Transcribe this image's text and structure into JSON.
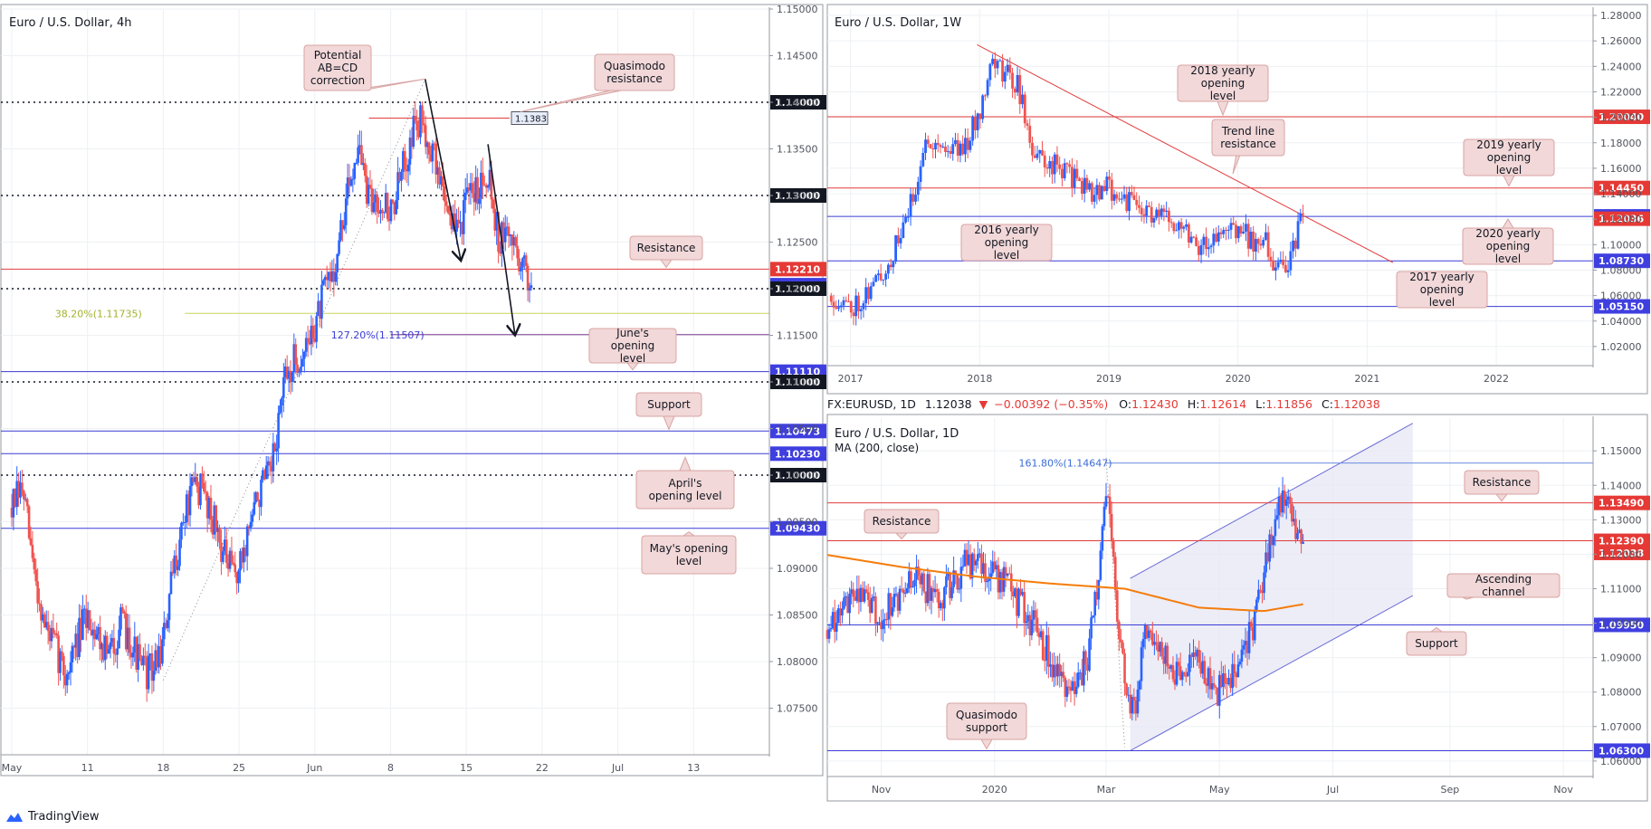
{
  "colors": {
    "up": "#2962ff",
    "down": "#ef5350",
    "red_line": "#e23b3b",
    "blue_line": "#3b3bd6",
    "fib": "#c7d65a",
    "ma": "#f57c0b",
    "callout_bg": "#f2d8d8",
    "callout_border": "#d9a3a3",
    "badge_red": "#e53935",
    "badge_blue": "#3f3fe0",
    "badge_dark": "#131722",
    "channel_fill": "#e7e9f5",
    "grid": "#eef0f3"
  },
  "footer": {
    "brand": "TradingView",
    "icon": "tradingview-cloud-icon"
  },
  "chart_data": [
    {
      "id": "h4",
      "type": "candlestick",
      "title": "Euro / U.S. Dollar, 4h",
      "ylim": [
        1.07,
        1.15
      ],
      "y_ticks": [
        1.075,
        1.08,
        1.085,
        1.09,
        1.095,
        1.1,
        1.105,
        1.11,
        1.115,
        1.12,
        1.125,
        1.13,
        1.135,
        1.14,
        1.145,
        1.15
      ],
      "y_tick_labels": [
        "1.07500",
        "1.08000",
        "1.08500",
        "1.09000",
        "1.09500",
        "1.10000",
        "1.10500",
        "1.11000",
        "1.11500",
        "1.12000",
        "1.12500",
        "1.13000",
        "1.13500",
        "1.14000",
        "1.14500",
        "1.15000"
      ],
      "x_ticks": [
        "May",
        "11",
        "18",
        "25",
        "Jun",
        "8",
        "15",
        "22",
        "Jul",
        "13"
      ],
      "x_tick_pos": [
        0,
        7,
        14,
        21,
        28,
        35,
        42,
        49,
        56,
        63
      ],
      "x_range": [
        -1,
        70
      ],
      "trend": [
        {
          "d": 0,
          "v": 1.0965
        },
        {
          "d": 1,
          "v": 1.0985
        },
        {
          "d": 2,
          "v": 1.09
        },
        {
          "d": 3,
          "v": 1.084
        },
        {
          "d": 4,
          "v": 1.0815
        },
        {
          "d": 5,
          "v": 1.0785
        },
        {
          "d": 6,
          "v": 1.082
        },
        {
          "d": 7,
          "v": 1.085
        },
        {
          "d": 8,
          "v": 1.083
        },
        {
          "d": 9,
          "v": 1.0805
        },
        {
          "d": 10,
          "v": 1.084
        },
        {
          "d": 11,
          "v": 1.0825
        },
        {
          "d": 12,
          "v": 1.079
        },
        {
          "d": 13,
          "v": 1.079
        },
        {
          "d": 14,
          "v": 1.082
        },
        {
          "d": 15,
          "v": 1.09
        },
        {
          "d": 16,
          "v": 1.096
        },
        {
          "d": 17,
          "v": 1.099
        },
        {
          "d": 18,
          "v": 1.0975
        },
        {
          "d": 19,
          "v": 1.094
        },
        {
          "d": 20,
          "v": 1.09
        },
        {
          "d": 21,
          "v": 1.0895
        },
        {
          "d": 22,
          "v": 1.095
        },
        {
          "d": 23,
          "v": 1.0985
        },
        {
          "d": 24,
          "v": 1.1
        },
        {
          "d": 25,
          "v": 1.109
        },
        {
          "d": 26,
          "v": 1.112
        },
        {
          "d": 27,
          "v": 1.113
        },
        {
          "d": 28,
          "v": 1.116
        },
        {
          "d": 29,
          "v": 1.12
        },
        {
          "d": 30,
          "v": 1.123
        },
        {
          "d": 31,
          "v": 1.13
        },
        {
          "d": 32,
          "v": 1.136
        },
        {
          "d": 33,
          "v": 1.129
        },
        {
          "d": 34,
          "v": 1.13
        },
        {
          "d": 35,
          "v": 1.128
        },
        {
          "d": 36,
          "v": 1.132
        },
        {
          "d": 37,
          "v": 1.137
        },
        {
          "d": 38,
          "v": 1.138
        },
        {
          "d": 39,
          "v": 1.134
        },
        {
          "d": 40,
          "v": 1.13
        },
        {
          "d": 41,
          "v": 1.126
        },
        {
          "d": 42,
          "v": 1.129
        },
        {
          "d": 43,
          "v": 1.131
        },
        {
          "d": 44,
          "v": 1.133
        },
        {
          "d": 45,
          "v": 1.125
        },
        {
          "d": 46,
          "v": 1.126
        },
        {
          "d": 47,
          "v": 1.123
        },
        {
          "d": 48,
          "v": 1.1204
        }
      ],
      "last_day": 48,
      "level_labels": [
        {
          "text": "1.14000",
          "value": 1.14,
          "style": "dark"
        },
        {
          "text": "1.13000",
          "value": 1.13,
          "style": "dark"
        },
        {
          "text": "1.12210",
          "value": 1.1221,
          "style": "red"
        },
        {
          "text": "1.12038",
          "value": 1.12038,
          "style": "blue"
        },
        {
          "text": "1.12000",
          "value": 1.12,
          "style": "dark"
        },
        {
          "text": "1.11110",
          "value": 1.1111,
          "style": "blue"
        },
        {
          "text": "1.11000",
          "value": 1.11,
          "style": "dark"
        },
        {
          "text": "1.10473",
          "value": 1.10473,
          "style": "blue"
        },
        {
          "text": "1.10230",
          "value": 1.1023,
          "style": "blue"
        },
        {
          "text": "1.10000",
          "value": 1.1,
          "style": "dark"
        },
        {
          "text": "1.09430",
          "value": 1.0943,
          "style": "blue"
        }
      ],
      "fib_label": "38.20%(1.11735)",
      "fib_value": 1.11735,
      "ext_label": "127.20%(1.11507)",
      "ext_value": 1.11507,
      "qm_label": "1.1383",
      "qm_value": 1.1383,
      "annotations": [
        "Potential AB=CD correction",
        "Quasimodo resistance",
        "Resistance",
        "June's opening level",
        "Support",
        "April's opening level",
        "May's opening level"
      ]
    },
    {
      "id": "w1",
      "type": "candlestick",
      "title": "Euro / U.S. Dollar, 1W",
      "ylim": [
        1.005,
        1.285
      ],
      "y_ticks": [
        1.02,
        1.04,
        1.06,
        1.08,
        1.1,
        1.12,
        1.14,
        1.16,
        1.18,
        1.2,
        1.22,
        1.24,
        1.26,
        1.28
      ],
      "y_tick_labels": [
        "1.02000",
        "1.04000",
        "1.06000",
        "1.08000",
        "1.10000",
        "1.12000",
        "1.14000",
        "1.16000",
        "1.18000",
        "1.20000",
        "1.22000",
        "1.24000",
        "1.26000",
        "1.28000"
      ],
      "x_ticks": [
        "2017",
        "2018",
        "2019",
        "2020",
        "2021",
        "2022"
      ],
      "x_tick_pos": [
        2017,
        2018,
        2019,
        2020,
        2021,
        2022
      ],
      "x_range": [
        2016.82,
        2022.75
      ],
      "trend": [
        {
          "t": 2016.85,
          "v": 1.06
        },
        {
          "t": 2017.0,
          "v": 1.05
        },
        {
          "t": 2017.15,
          "v": 1.065
        },
        {
          "t": 2017.3,
          "v": 1.085
        },
        {
          "t": 2017.45,
          "v": 1.125
        },
        {
          "t": 2017.6,
          "v": 1.185
        },
        {
          "t": 2017.75,
          "v": 1.175
        },
        {
          "t": 2017.9,
          "v": 1.18
        },
        {
          "t": 2018.0,
          "v": 1.205
        },
        {
          "t": 2018.08,
          "v": 1.245
        },
        {
          "t": 2018.2,
          "v": 1.235
        },
        {
          "t": 2018.3,
          "v": 1.225
        },
        {
          "t": 2018.4,
          "v": 1.175
        },
        {
          "t": 2018.5,
          "v": 1.165
        },
        {
          "t": 2018.65,
          "v": 1.16
        },
        {
          "t": 2018.75,
          "v": 1.15
        },
        {
          "t": 2018.9,
          "v": 1.14
        },
        {
          "t": 2019.0,
          "v": 1.145
        },
        {
          "t": 2019.2,
          "v": 1.13
        },
        {
          "t": 2019.4,
          "v": 1.12
        },
        {
          "t": 2019.55,
          "v": 1.12
        },
        {
          "t": 2019.7,
          "v": 1.1
        },
        {
          "t": 2019.85,
          "v": 1.105
        },
        {
          "t": 2020.0,
          "v": 1.115
        },
        {
          "t": 2020.12,
          "v": 1.1
        },
        {
          "t": 2020.2,
          "v": 1.11
        },
        {
          "t": 2020.25,
          "v": 1.08
        },
        {
          "t": 2020.35,
          "v": 1.085
        },
        {
          "t": 2020.42,
          "v": 1.09
        },
        {
          "t": 2020.48,
          "v": 1.125
        },
        {
          "t": 2020.52,
          "v": 1.12
        }
      ],
      "level_labels": [
        {
          "text": "1.20040",
          "value": 1.2004,
          "style": "red"
        },
        {
          "text": "1.14450",
          "value": 1.1445,
          "style": "red"
        },
        {
          "text": "1.12220",
          "value": 1.1222,
          "style": "blue"
        },
        {
          "text": "1.12036",
          "value": 1.12036,
          "style": "red"
        },
        {
          "text": "1.08730",
          "value": 1.0873,
          "style": "blue"
        },
        {
          "text": "1.05150",
          "value": 1.0515,
          "style": "blue"
        }
      ],
      "trendline": [
        {
          "t": 2017.98,
          "v": 1.257
        },
        {
          "t": 2021.2,
          "v": 1.086
        }
      ],
      "annotations": [
        "2018 yearly opening level",
        "Trend line resistance",
        "2019 yearly opening level",
        "2016 yearly opening level",
        "2020 yearly opening level",
        "2017 yearly opening level"
      ]
    },
    {
      "id": "d1",
      "type": "candlestick",
      "title": "Euro / U.S. Dollar, 1D",
      "ma_label": "MA (200, close)",
      "ohlc_header": {
        "symbol": "FX:EURUSD, 1D",
        "price": "1.12038",
        "change": "−0.00392 (−0.35%)",
        "o_label": "O:",
        "o": "1.12430",
        "h_label": "H:",
        "h": "1.12614",
        "l_label": "L:",
        "l": "1.11856",
        "c_label": "C:",
        "c": "1.12038"
      },
      "ylim": [
        1.0555,
        1.1595
      ],
      "y_ticks": [
        1.06,
        1.07,
        1.08,
        1.09,
        1.1,
        1.11,
        1.12,
        1.13,
        1.14,
        1.15
      ],
      "y_tick_labels": [
        "1.06000",
        "1.07000",
        "1.08000",
        "1.09000",
        "1.10000",
        "1.11000",
        "1.12000",
        "1.13000",
        "1.14000",
        "1.15000"
      ],
      "x_ticks": [
        "Nov",
        "2020",
        "Mar",
        "May",
        "Jul",
        "Sep",
        "Nov"
      ],
      "x_tick_pos": [
        29,
        90,
        150,
        211,
        272,
        335,
        396
      ],
      "x_range": [
        0,
        412
      ],
      "trend": [
        {
          "d": 0,
          "v": 1.098
        },
        {
          "d": 15,
          "v": 1.11
        },
        {
          "d": 30,
          "v": 1.102
        },
        {
          "d": 45,
          "v": 1.113
        },
        {
          "d": 60,
          "v": 1.108
        },
        {
          "d": 75,
          "v": 1.117
        },
        {
          "d": 90,
          "v": 1.115
        },
        {
          "d": 105,
          "v": 1.105
        },
        {
          "d": 120,
          "v": 1.09
        },
        {
          "d": 132,
          "v": 1.08
        },
        {
          "d": 140,
          "v": 1.09
        },
        {
          "d": 147,
          "v": 1.12
        },
        {
          "d": 150,
          "v": 1.14
        },
        {
          "d": 155,
          "v": 1.11
        },
        {
          "d": 160,
          "v": 1.082
        },
        {
          "d": 165,
          "v": 1.075
        },
        {
          "d": 172,
          "v": 1.1
        },
        {
          "d": 180,
          "v": 1.09
        },
        {
          "d": 190,
          "v": 1.085
        },
        {
          "d": 200,
          "v": 1.088
        },
        {
          "d": 210,
          "v": 1.08
        },
        {
          "d": 220,
          "v": 1.085
        },
        {
          "d": 230,
          "v": 1.1
        },
        {
          "d": 238,
          "v": 1.125
        },
        {
          "d": 245,
          "v": 1.135
        },
        {
          "d": 252,
          "v": 1.128
        },
        {
          "d": 256,
          "v": 1.1204
        }
      ],
      "last_day": 256,
      "ma": [
        {
          "d": 0,
          "v": 1.1198
        },
        {
          "d": 40,
          "v": 1.1163
        },
        {
          "d": 80,
          "v": 1.1135
        },
        {
          "d": 120,
          "v": 1.1115
        },
        {
          "d": 160,
          "v": 1.11
        },
        {
          "d": 200,
          "v": 1.1045
        },
        {
          "d": 235,
          "v": 1.1035
        },
        {
          "d": 256,
          "v": 1.1055
        }
      ],
      "channel": {
        "lower": [
          {
            "d": 163,
            "v": 1.063
          },
          {
            "d": 315,
            "v": 1.108
          }
        ],
        "upper": [
          {
            "d": 163,
            "v": 1.113
          },
          {
            "d": 315,
            "v": 1.158
          }
        ]
      },
      "level_labels": [
        {
          "text": "1.13490",
          "value": 1.1349,
          "style": "red"
        },
        {
          "text": "1.12390",
          "value": 1.1239,
          "style": "red"
        },
        {
          "text": "1.12038",
          "value": 1.12038,
          "style": "red"
        },
        {
          "text": "1.09950",
          "value": 1.0995,
          "style": "blue"
        },
        {
          "text": "1.06300",
          "value": 1.063,
          "style": "blue"
        }
      ],
      "ext_label": "161.80%(1.14647)",
      "ext_value": 1.14647,
      "annotations": [
        "Resistance",
        "Resistance",
        "Ascending channel",
        "Support",
        "Quasimodo support"
      ]
    }
  ]
}
